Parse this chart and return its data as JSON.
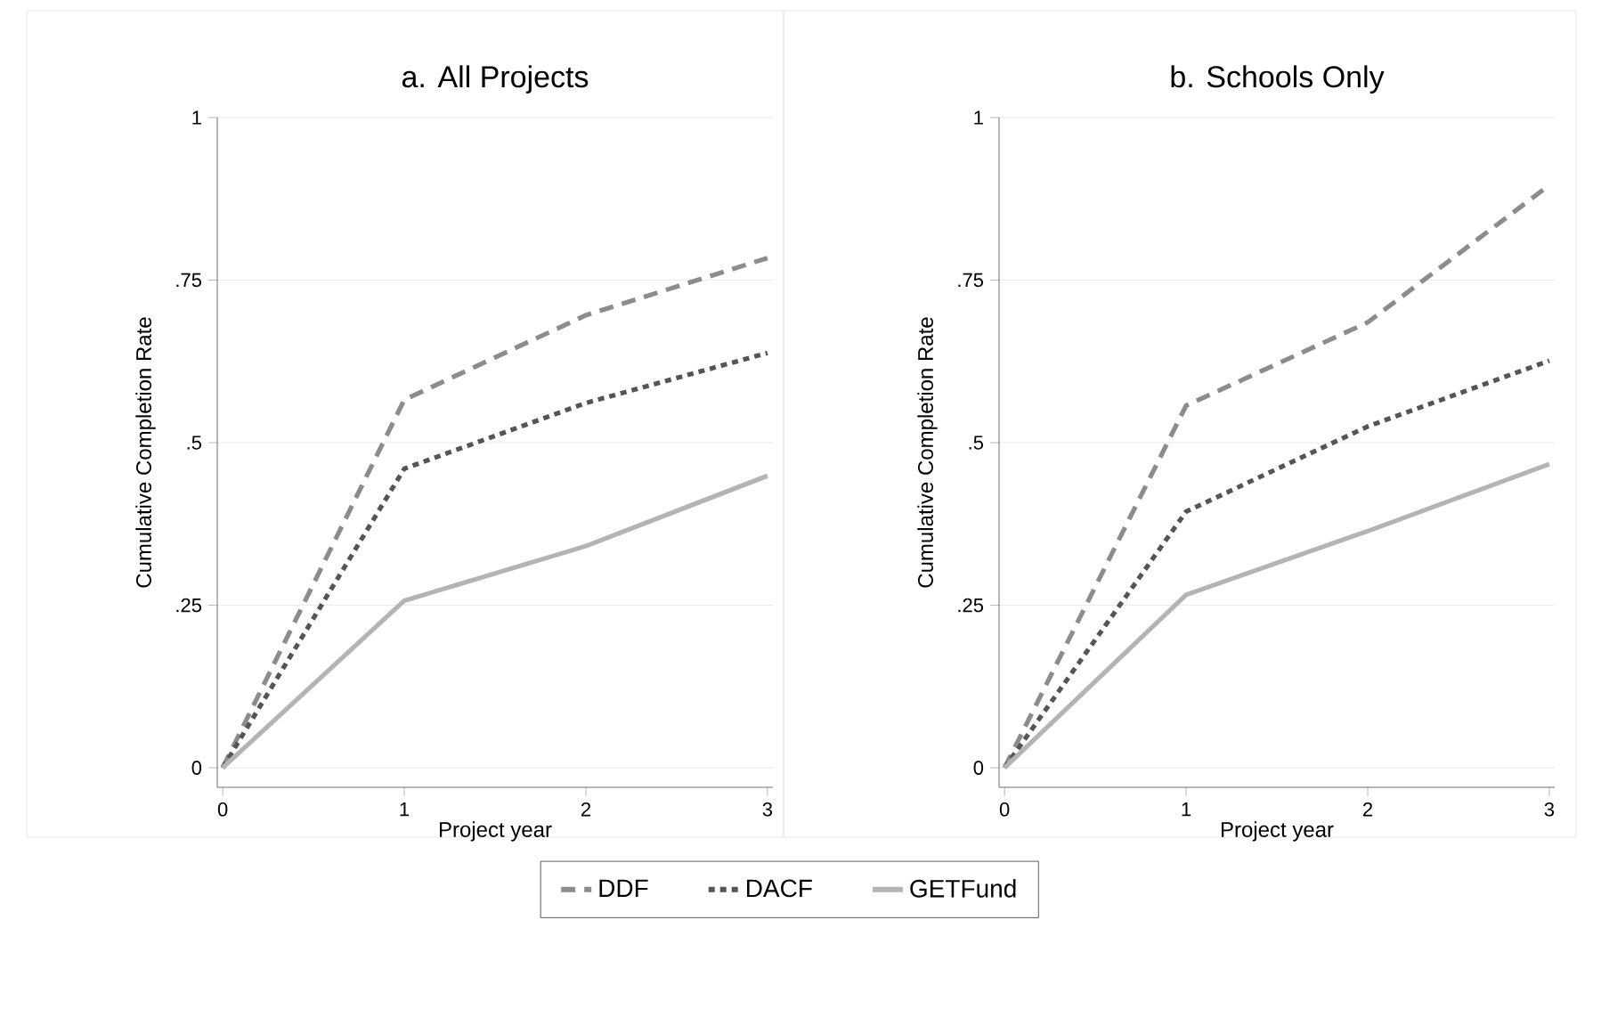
{
  "chart_data": [
    {
      "type": "line",
      "title": "a. All Projects",
      "xlabel": "Project year",
      "ylabel": "Cumulative Completion Rate",
      "x": [
        0,
        1,
        2,
        3
      ],
      "xlim": [
        -0.03,
        3.03
      ],
      "xticks": [
        0,
        1,
        2,
        3
      ],
      "ylim": [
        -0.03,
        1
      ],
      "yticks": [
        0,
        {
          "value": 0.25,
          "label": ".25"
        },
        {
          "value": 0.5,
          "label": ".5"
        },
        {
          "value": 0.75,
          "label": ".75"
        },
        1
      ],
      "grid": "y",
      "legend": "bottom",
      "series": [
        {
          "name": "DDF",
          "color": "#8c8c8c",
          "line_style": "dashed",
          "values": [
            0,
            0.566,
            0.696,
            0.784
          ]
        },
        {
          "name": "DACF",
          "color": "#555555",
          "line_style": "dotted",
          "values": [
            0,
            0.46,
            0.561,
            0.638
          ]
        },
        {
          "name": "GETFund",
          "color": "#b4b4b4",
          "line_style": "solid",
          "values": [
            0,
            0.257,
            0.341,
            0.449
          ]
        }
      ]
    },
    {
      "type": "line",
      "title": "b. Schools Only",
      "xlabel": "Project year",
      "ylabel": "Cumulative Completion Rate",
      "x": [
        0,
        1,
        2,
        3
      ],
      "xlim": [
        -0.03,
        3.03
      ],
      "xticks": [
        0,
        1,
        2,
        3
      ],
      "ylim": [
        -0.03,
        1
      ],
      "yticks": [
        0,
        {
          "value": 0.25,
          "label": ".25"
        },
        {
          "value": 0.5,
          "label": ".5"
        },
        {
          "value": 0.75,
          "label": ".75"
        },
        1
      ],
      "grid": "y",
      "series": [
        {
          "color": "#8c8c8c",
          "line_style": "dashed",
          "values": [
            0,
            0.557,
            0.685,
            0.896
          ]
        },
        {
          "color": "#555555",
          "line_style": "dotted",
          "values": [
            0,
            0.394,
            0.525,
            0.626
          ]
        },
        {
          "color": "#b4b4b4",
          "line_style": "solid",
          "values": [
            0,
            0.266,
            0.364,
            0.467
          ]
        }
      ]
    }
  ]
}
